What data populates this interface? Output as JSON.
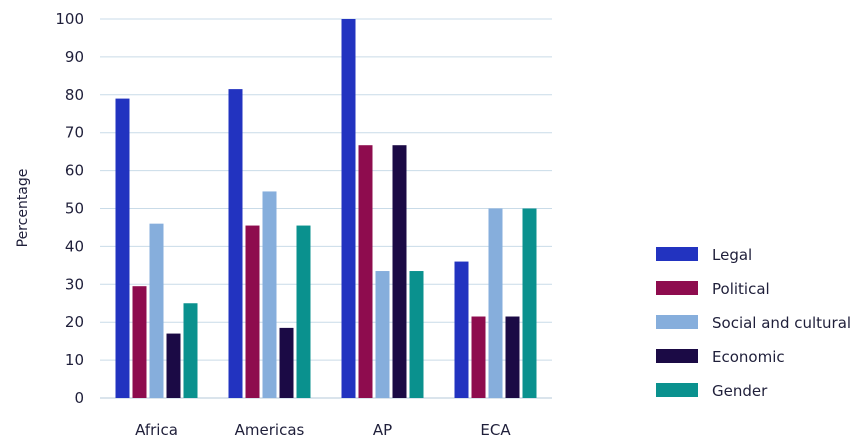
{
  "chart_data": {
    "type": "bar",
    "title": "",
    "xlabel": "",
    "ylabel": "Percentage",
    "ylim": [
      0,
      100
    ],
    "yticks": [
      0,
      10,
      20,
      30,
      40,
      50,
      60,
      70,
      80,
      90,
      100
    ],
    "grid": true,
    "legend_position": "right",
    "categories": [
      "Africa",
      "Americas",
      "AP",
      "ECA"
    ],
    "series": [
      {
        "name": "Legal",
        "color": "#2233c0",
        "values": [
          79,
          81.5,
          100,
          36
        ]
      },
      {
        "name": "Political",
        "color": "#8e0c4e",
        "values": [
          29.5,
          45.5,
          66.7,
          21.5
        ]
      },
      {
        "name": "Social and cultural",
        "color": "#86aedc",
        "values": [
          46,
          54.5,
          33.5,
          50
        ]
      },
      {
        "name": "Economic",
        "color": "#1b0a45",
        "values": [
          17,
          18.5,
          66.7,
          21.5
        ]
      },
      {
        "name": "Gender",
        "color": "#0a918e",
        "values": [
          25,
          45.5,
          33.5,
          50
        ]
      }
    ]
  }
}
